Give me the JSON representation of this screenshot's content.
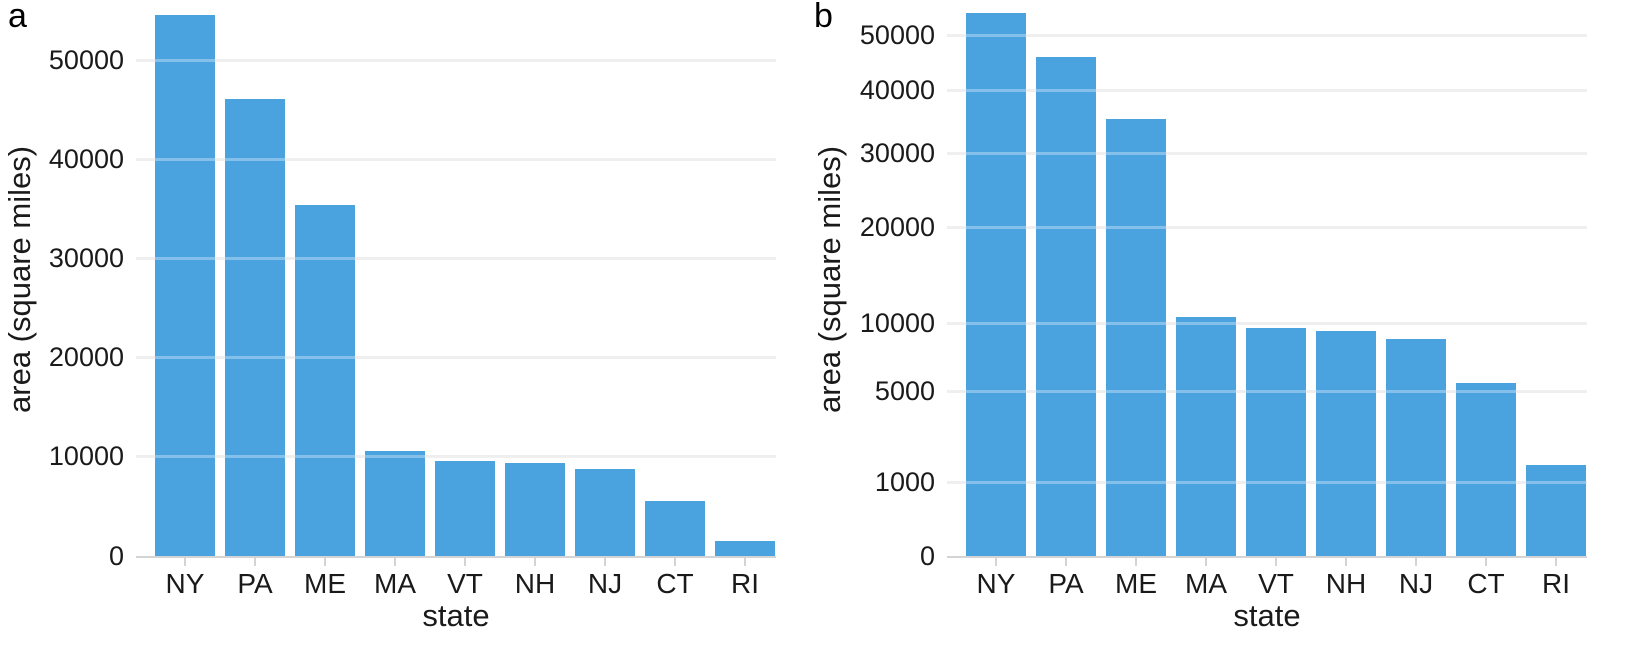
{
  "chart_data": {
    "type": "bar",
    "categories": [
      "NY",
      "PA",
      "ME",
      "MA",
      "VT",
      "NH",
      "NJ",
      "CT",
      "RI"
    ],
    "values": [
      54555,
      46054,
      35380,
      10554,
      9616,
      9349,
      8723,
      5543,
      1545
    ],
    "xlabel": "state",
    "ylabel": "area (square miles)",
    "bar_color": "#4aa3df",
    "grid": true,
    "legend_position": "none",
    "panels": [
      {
        "label": "a",
        "scale": "linear",
        "yticks": [
          0,
          10000,
          20000,
          30000,
          40000,
          50000
        ],
        "ylim": [
          0,
          55750
        ]
      },
      {
        "label": "b",
        "scale": "sqrt",
        "yticks": [
          0,
          1000,
          5000,
          10000,
          20000,
          30000,
          40000,
          50000
        ],
        "ylim": [
          0,
          56540
        ]
      }
    ]
  },
  "colors": {
    "bar": "#4aa3df",
    "gridline": "#e7e7e7",
    "axis_line": "#d4d4d4",
    "text": "#1a1a1a"
  }
}
